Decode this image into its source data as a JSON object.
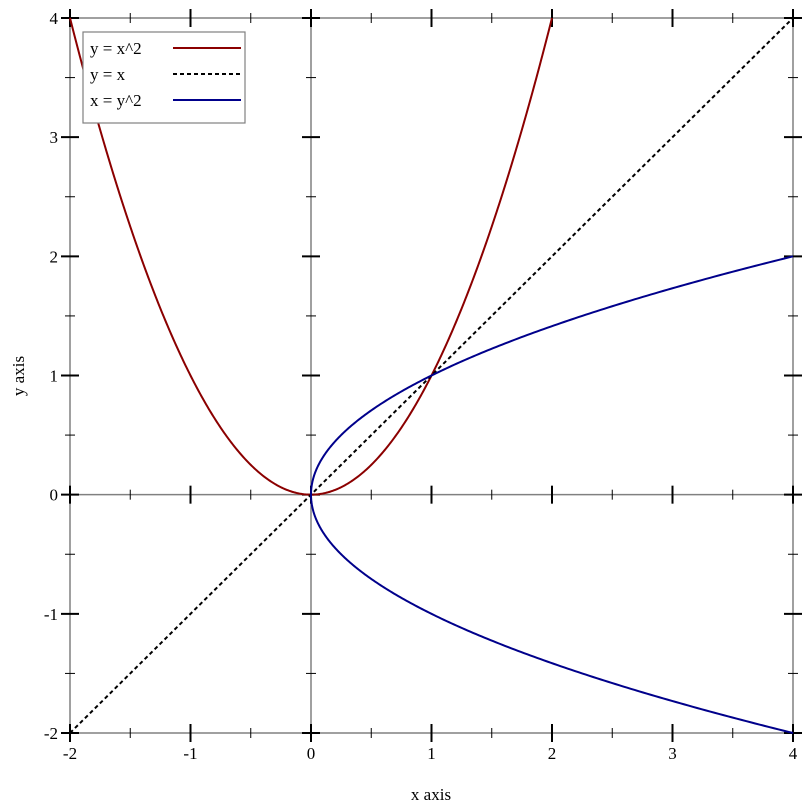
{
  "chart_data": {
    "type": "line",
    "xlabel": "x axis",
    "ylabel": "y axis",
    "xlim": [
      -2,
      4
    ],
    "ylim": [
      -2,
      4
    ],
    "x_ticks": [
      "-2",
      "-1",
      "0",
      "1",
      "2",
      "3",
      "4"
    ],
    "y_ticks": [
      "-2",
      "-1",
      "0",
      "1",
      "2",
      "3",
      "4"
    ],
    "x_tick_values": [
      -2,
      -1,
      0,
      1,
      2,
      3,
      4
    ],
    "y_tick_values": [
      -2,
      -1,
      0,
      1,
      2,
      3,
      4
    ],
    "minor_tick_step": 0.5,
    "grid": false,
    "legend_position": "top-left",
    "series": [
      {
        "name": "y = x^2",
        "function": "y = x^2",
        "domain": [
          -2,
          2
        ],
        "color": "#8b0000",
        "style": "solid"
      },
      {
        "name": "y = x",
        "function": "y = x",
        "domain": [
          -2,
          4
        ],
        "color": "#000000",
        "style": "dashed"
      },
      {
        "name": "x = y^2",
        "function": "x = y^2",
        "y_domain": [
          -2,
          2
        ],
        "color": "#00008b",
        "style": "solid"
      }
    ]
  }
}
